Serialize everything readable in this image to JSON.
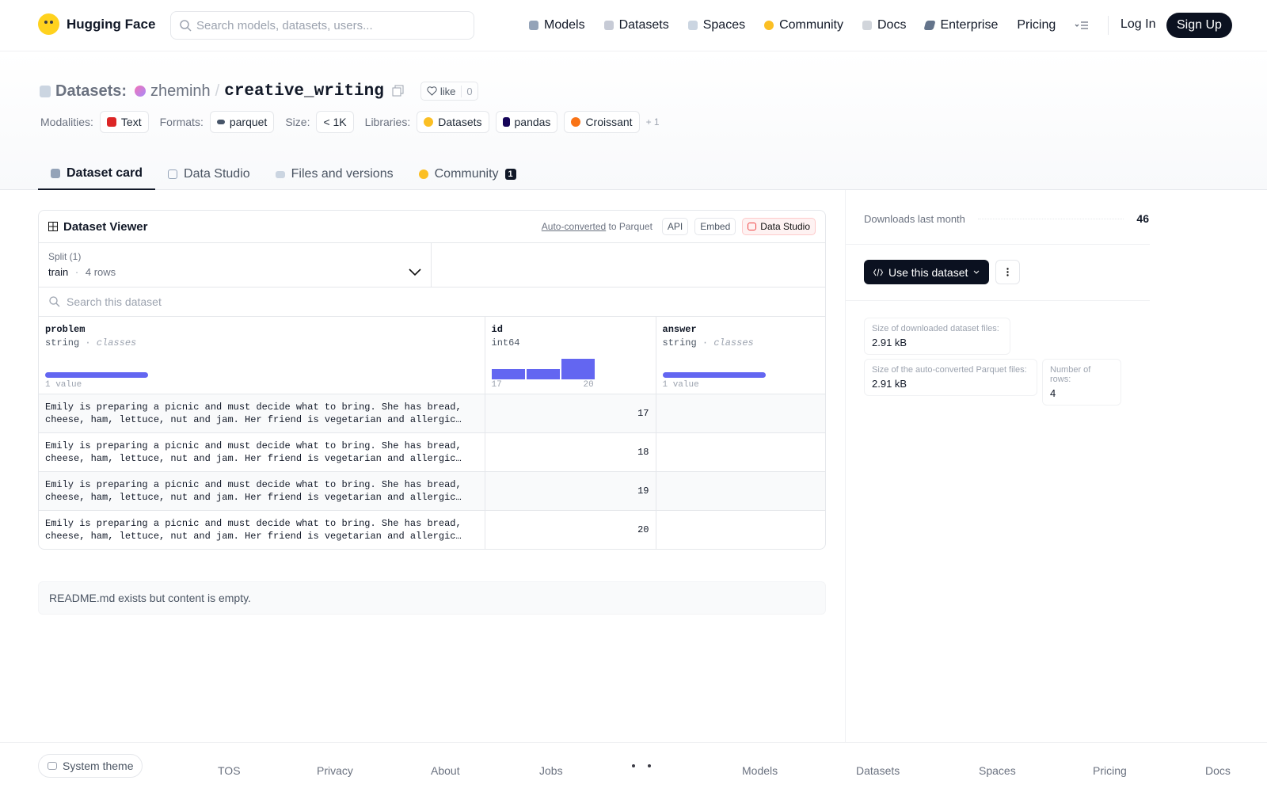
{
  "nav": {
    "brand": "Hugging Face",
    "search_placeholder": "Search models, datasets, users...",
    "links": [
      "Models",
      "Datasets",
      "Spaces",
      "Community",
      "Docs",
      "Enterprise",
      "Pricing"
    ],
    "login": "Log In",
    "signup": "Sign Up"
  },
  "header": {
    "kind": "Datasets:",
    "owner": "zheminh",
    "separator": "/",
    "repo": "creative_writing",
    "like": "like",
    "likes": 0,
    "meta": [
      {
        "label": "Modalities:",
        "items": [
          "Text"
        ]
      },
      {
        "label": "Formats:",
        "items": [
          "parquet"
        ]
      },
      {
        "label": "Size:",
        "items": [
          "< 1K"
        ]
      },
      {
        "label": "Libraries:",
        "items": [
          "Datasets",
          "pandas",
          "Croissant"
        ]
      }
    ],
    "more": "+ 1"
  },
  "tabs": [
    {
      "label": "Dataset card"
    },
    {
      "label": "Data Studio"
    },
    {
      "label": "Files and versions"
    },
    {
      "label": "Community",
      "badge": 1
    }
  ],
  "viewer": {
    "title": "Dataset Viewer",
    "auto_converted": "Auto-converted",
    "to_parquet": "to Parquet",
    "buttons": [
      "API",
      "Embed",
      "Data Studio"
    ],
    "split_label": "Split (1)",
    "split": "train",
    "split_dot": "·",
    "rows_count": "4 rows",
    "search_placeholder": "Search this dataset",
    "columns": [
      {
        "name": "problem",
        "dtype": "string",
        "dot": "·",
        "kind": "classes",
        "summary": "1 value"
      },
      {
        "name": "id",
        "dtype": "int64",
        "min": 17,
        "max": 20,
        "histogram": [
          1,
          1,
          2
        ]
      },
      {
        "name": "answer",
        "dtype": "string",
        "dot": "·",
        "kind": "classes",
        "summary": "1 value"
      }
    ],
    "rows": [
      {
        "problem": "Emily is preparing a picnic and must decide what to bring. She has bread, cheese, ham, lettuce, nut and jam. Her friend is vegetarian and allergic to…",
        "id": 17
      },
      {
        "problem": "Emily is preparing a picnic and must decide what to bring. She has bread, cheese, ham, lettuce, nut and jam. Her friend is vegetarian and allergic to…",
        "id": 18
      },
      {
        "problem": "Emily is preparing a picnic and must decide what to bring. She has bread, cheese, ham, lettuce, nut and jam. Her friend is vegetarian and allergic to…",
        "id": 19
      },
      {
        "problem": "Emily is preparing a picnic and must decide what to bring. She has bread, cheese, ham, lettuce, nut and jam. Her friend is vegetarian and allergic to…",
        "id": 20
      }
    ]
  },
  "readme": "README.md exists but content is empty.",
  "sidebar": {
    "downloads_label": "Downloads last month",
    "downloads": 46,
    "use_button": "Use this dataset",
    "stats": [
      {
        "label": "Size of downloaded dataset files:",
        "value": "2.91 kB"
      },
      {
        "label": "Size of the auto-converted Parquet files:",
        "value": "2.91 kB"
      },
      {
        "label": "Number of rows:",
        "value": 4
      }
    ]
  },
  "footer": {
    "theme": "System theme",
    "links": [
      "TOS",
      "Privacy",
      "About",
      "Jobs",
      "Models",
      "Datasets",
      "Spaces",
      "Pricing",
      "Docs"
    ]
  }
}
